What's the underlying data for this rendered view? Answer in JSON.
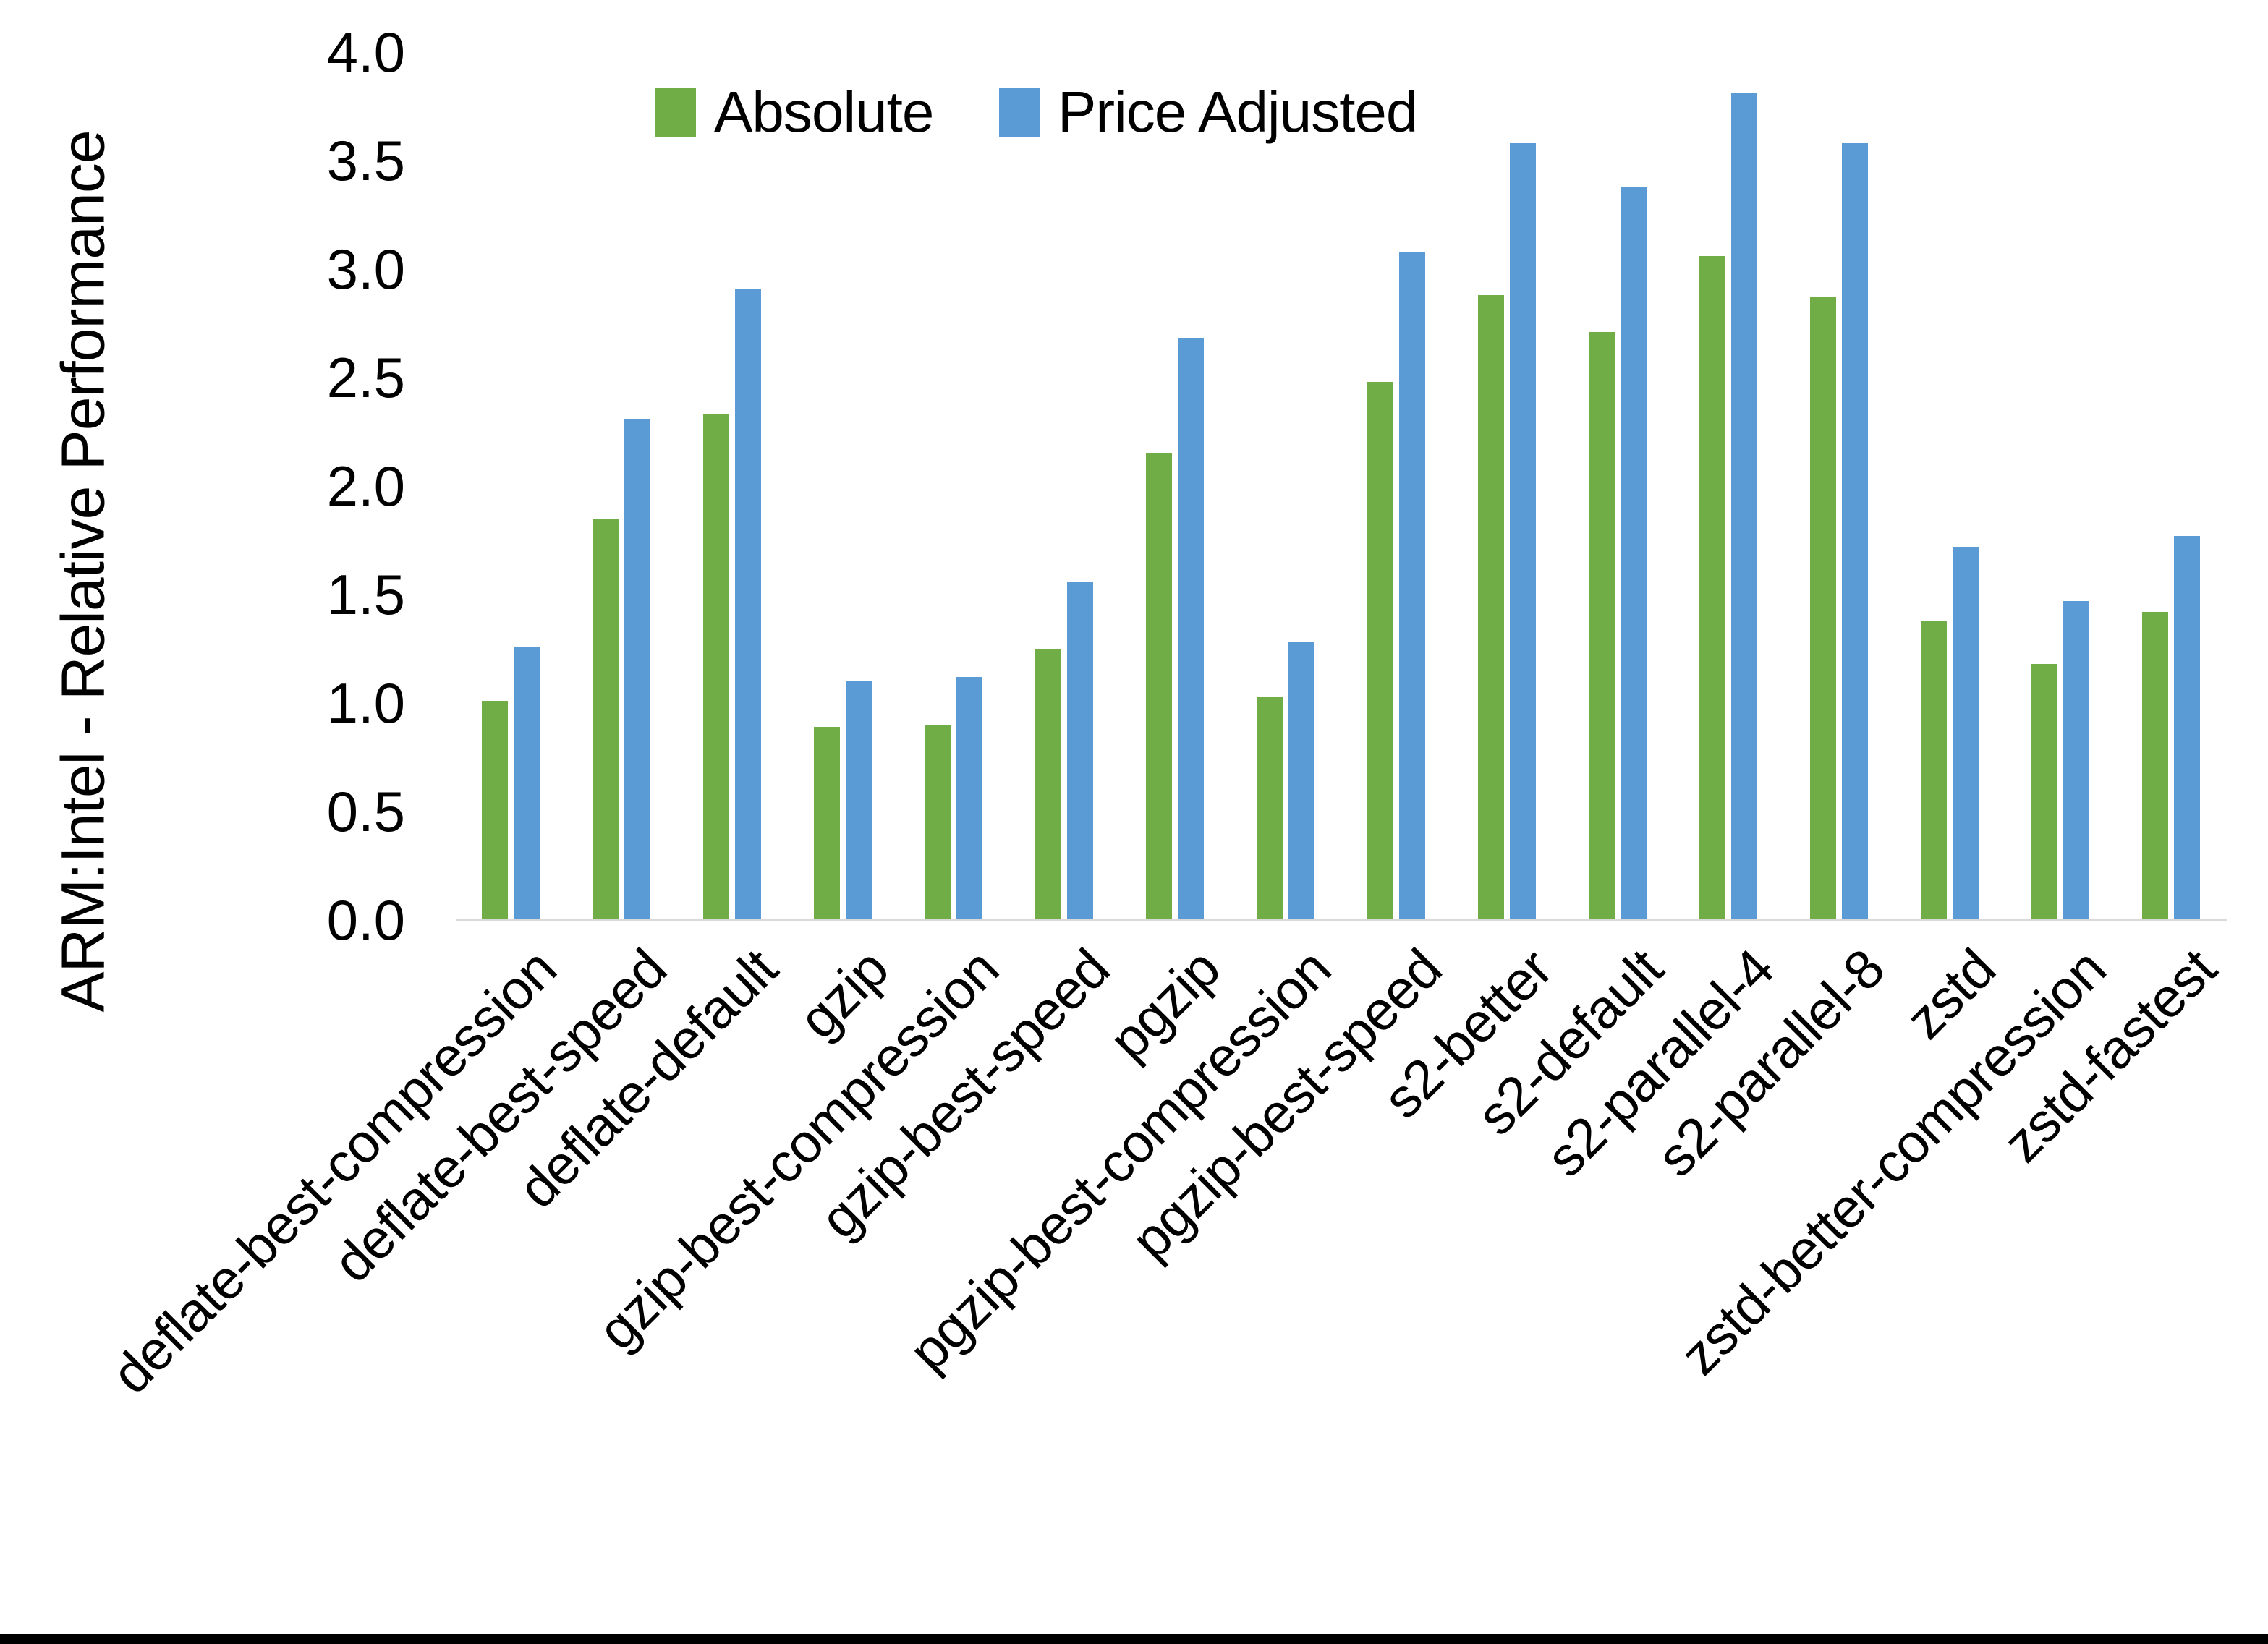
{
  "chart_data": {
    "type": "bar",
    "title": "",
    "ylabel": "ARM:Intel - Relative Performance",
    "xlabel": "",
    "ylim": [
      0.0,
      4.0
    ],
    "ytick_step": 0.5,
    "yticks": [
      "0.0",
      "0.5",
      "1.0",
      "1.5",
      "2.0",
      "2.5",
      "3.0",
      "3.5",
      "4.0"
    ],
    "grid": false,
    "legend_position": "top-center",
    "categories": [
      "deflate-best-compression",
      "deflate-best-speed",
      "deflate-default",
      "gzip",
      "gzip-best-compression",
      "gzip-best-speed",
      "pgzip",
      "pgzip-best-compression",
      "pgzip-best-speed",
      "s2-better",
      "s2-default",
      "s2-parallel-4",
      "s2-parallel-8",
      "zstd",
      "zstd-better-compression",
      "zstd-fastest"
    ],
    "series": [
      {
        "name": "Absolute",
        "color": "#70AD47",
        "values": [
          1.01,
          1.85,
          2.33,
          0.89,
          0.9,
          1.25,
          2.15,
          1.03,
          2.48,
          2.88,
          2.71,
          3.06,
          2.87,
          1.38,
          1.18,
          1.42
        ]
      },
      {
        "name": "Price Adjusted",
        "color": "#5B9BD5",
        "values": [
          1.26,
          2.31,
          2.91,
          1.1,
          1.12,
          1.56,
          2.68,
          1.28,
          3.08,
          3.58,
          3.38,
          3.81,
          3.58,
          1.72,
          1.47,
          1.77
        ]
      }
    ],
    "colors": {
      "axis_line": "#D9D9D9",
      "text": "#000000",
      "background": "#FFFFFF",
      "bottom_bar": "#000000"
    }
  }
}
